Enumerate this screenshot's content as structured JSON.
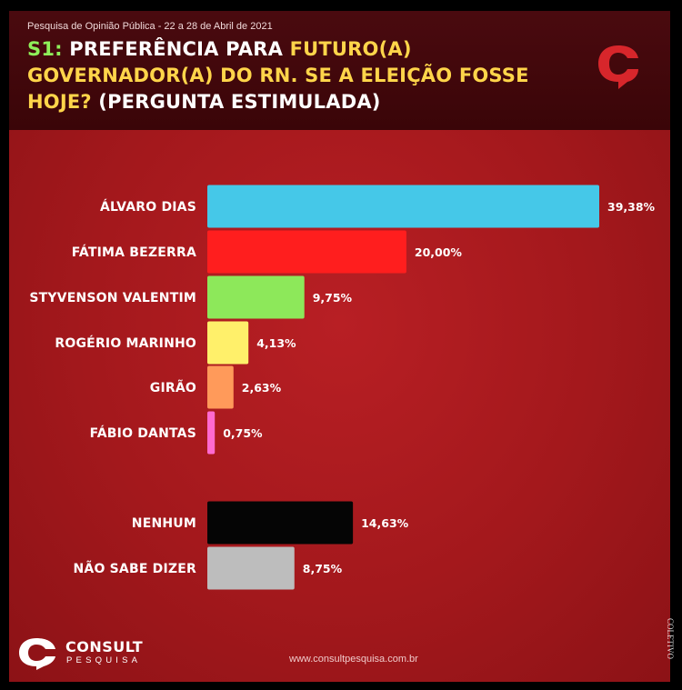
{
  "header": {
    "subtitle": "Pesquisa de Opinião Pública - 22 a 28 de Abril de 2021",
    "title_prefix": "S1:",
    "title_part1": " PREFERÊNCIA PARA ",
    "title_highlight": "FUTURO(A) GOVERNADOR(A) DO RN. SE A ELEIÇÃO FOSSE HOJE?",
    "title_part2": " (PERGUNTA ESTIMULADA)"
  },
  "brand": {
    "name": "CONSULT",
    "sub": "PESQUISA",
    "url": "www.consultpesquisa.com.br",
    "watermark": "COLETIVO"
  },
  "colors": {
    "accent_green": "#8ff05a",
    "accent_yellow": "#ffd54a",
    "background_red": "#a3181c",
    "header_dark": "#3a0508"
  },
  "chart_data": {
    "type": "bar",
    "orientation": "horizontal",
    "categories": [
      "ÁLVARO DIAS",
      "FÁTIMA BEZERRA",
      "STYVENSON VALENTIM",
      "ROGÉRIO MARINHO",
      "GIRÃO",
      "FÁBIO DANTAS",
      "NENHUM",
      "NÃO SABE DIZER"
    ],
    "values": [
      39.38,
      20.0,
      9.75,
      4.13,
      2.63,
      0.75,
      14.63,
      8.75
    ],
    "value_labels": [
      "39,38%",
      "20,00%",
      "9,75%",
      "4,13%",
      "2,63%",
      "0,75%",
      "14,63%",
      "8,75%"
    ],
    "bar_colors": [
      "#45c8e8",
      "#ff1e1e",
      "#8de85a",
      "#fff06a",
      "#ff9a5a",
      "#ff6ad0",
      "#050505",
      "#bdbdbd"
    ],
    "grid": false,
    "legend": "none"
  }
}
